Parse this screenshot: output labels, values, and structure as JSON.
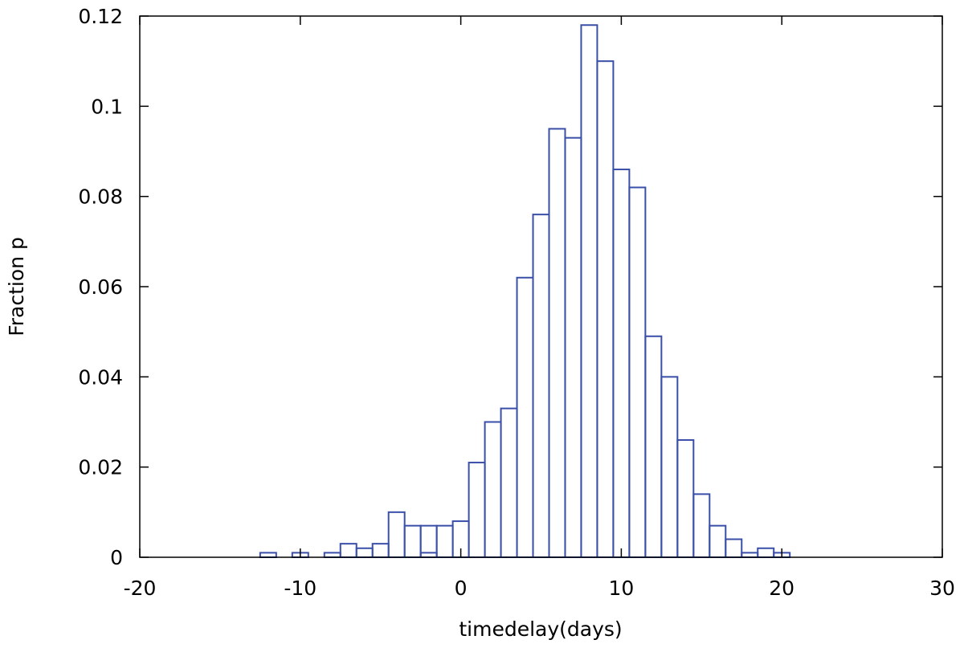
{
  "chart_data": {
    "type": "bar",
    "xlabel": "timedelay(days)",
    "ylabel": "Fraction p",
    "xlim": [
      -20,
      30
    ],
    "ylim": [
      0,
      0.12
    ],
    "bin_width": 1,
    "x_ticks": [
      -20,
      -10,
      0,
      10,
      20,
      30
    ],
    "x_tick_labels": [
      "-20",
      "-10",
      "0",
      "10",
      "20",
      "30"
    ],
    "y_ticks": [
      0,
      0.02,
      0.04,
      0.06,
      0.08,
      0.1,
      0.12
    ],
    "y_tick_labels": [
      "0",
      "0.02",
      "0.04",
      "0.06",
      "0.08",
      "0.1",
      "0.12"
    ],
    "grid": false,
    "bar_color": "#3a4fa8",
    "bins": [
      {
        "x": -12,
        "value": 0.001
      },
      {
        "x": -10,
        "value": 0.001
      },
      {
        "x": -8,
        "value": 0.001
      },
      {
        "x": -7,
        "value": 0.003
      },
      {
        "x": -6,
        "value": 0.002
      },
      {
        "x": -5,
        "value": 0.003
      },
      {
        "x": -4,
        "value": 0.01
      },
      {
        "x": -3,
        "value": 0.007
      },
      {
        "x": -2,
        "value": 0.007
      },
      {
        "x": -2,
        "value": 0.001
      },
      {
        "x": -1,
        "value": 0.007
      },
      {
        "x": 0,
        "value": 0.008
      },
      {
        "x": 1,
        "value": 0.021
      },
      {
        "x": 2,
        "value": 0.03
      },
      {
        "x": 3,
        "value": 0.033
      },
      {
        "x": 4,
        "value": 0.062
      },
      {
        "x": 5,
        "value": 0.076
      },
      {
        "x": 6,
        "value": 0.095
      },
      {
        "x": 7,
        "value": 0.093
      },
      {
        "x": 8,
        "value": 0.118
      },
      {
        "x": 9,
        "value": 0.11
      },
      {
        "x": 10,
        "value": 0.086
      },
      {
        "x": 11,
        "value": 0.082
      },
      {
        "x": 12,
        "value": 0.049
      },
      {
        "x": 13,
        "value": 0.04
      },
      {
        "x": 14,
        "value": 0.026
      },
      {
        "x": 15,
        "value": 0.014
      },
      {
        "x": 16,
        "value": 0.007
      },
      {
        "x": 17,
        "value": 0.004
      },
      {
        "x": 18,
        "value": 0.001
      },
      {
        "x": 19,
        "value": 0.002
      },
      {
        "x": 20,
        "value": 0.001
      }
    ]
  }
}
